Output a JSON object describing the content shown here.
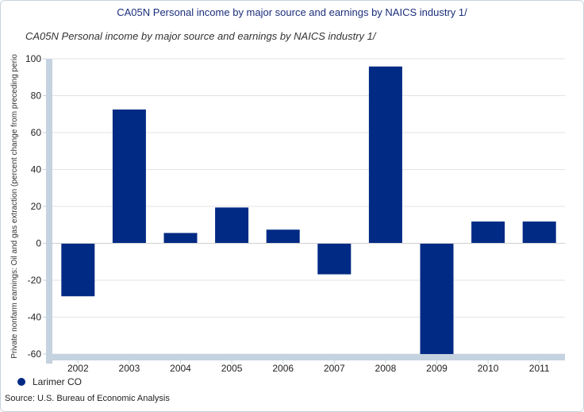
{
  "header": {
    "title": "CA05N Personal income by major source and earnings by NAICS industry 1/"
  },
  "chart_data": {
    "type": "bar",
    "title": "CA05N Personal income by major source and earnings by NAICS industry 1/",
    "xlabel": "",
    "ylabel": "Private nonfarm earnings: Oil and gas extraction (percent change from preceding perio",
    "categories": [
      "2002",
      "2003",
      "2004",
      "2005",
      "2006",
      "2007",
      "2008",
      "2009",
      "2010",
      "2011"
    ],
    "series": [
      {
        "name": "Larimer CO",
        "values": [
          -28.7,
          72.5,
          5.6,
          19.4,
          7.4,
          -16.8,
          95.8,
          -60.5,
          11.8,
          11.8
        ]
      }
    ],
    "ylim": [
      -60,
      100
    ],
    "yticks": [
      100,
      80,
      60,
      40,
      20,
      0,
      -20,
      -40,
      -60
    ],
    "grid": true,
    "legend_position": "bottom-left"
  },
  "colors": {
    "bar": "#002a84",
    "axis": "#c5d2df",
    "grid": "#e3e3e3",
    "title": "#1b2f7a"
  },
  "footer": {
    "legend_label": "Larimer CO",
    "source": "Source: U.S. Bureau of Economic  Analysis"
  }
}
